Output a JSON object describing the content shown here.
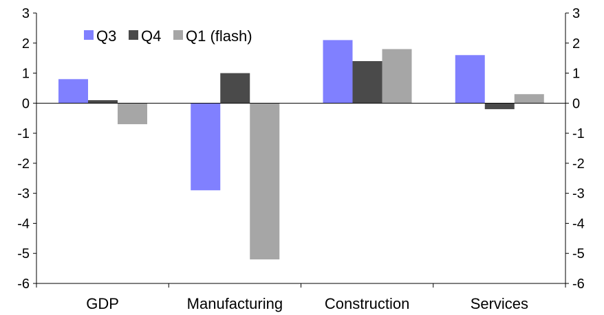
{
  "chart_data": {
    "type": "bar",
    "title": "",
    "xlabel": "",
    "ylabel": "",
    "categories": [
      "GDP",
      "Manufacturing",
      "Construction",
      "Services"
    ],
    "series": [
      {
        "name": "Q3",
        "color": "#8080ff",
        "values": [
          0.8,
          -2.9,
          2.1,
          1.6
        ]
      },
      {
        "name": "Q4",
        "color": "#4a4a4a",
        "values": [
          0.1,
          1.0,
          1.4,
          -0.2
        ]
      },
      {
        "name": "Q1 (flash)",
        "color": "#a6a6a6",
        "values": [
          -0.7,
          -5.2,
          1.8,
          0.3
        ]
      }
    ],
    "ylim": [
      -6,
      3
    ],
    "yticks": [
      3,
      2,
      1,
      0,
      -1,
      -2,
      -3,
      -4,
      -5,
      -6
    ],
    "secondary_yaxis": true,
    "grid": false,
    "legend": "top-left"
  }
}
